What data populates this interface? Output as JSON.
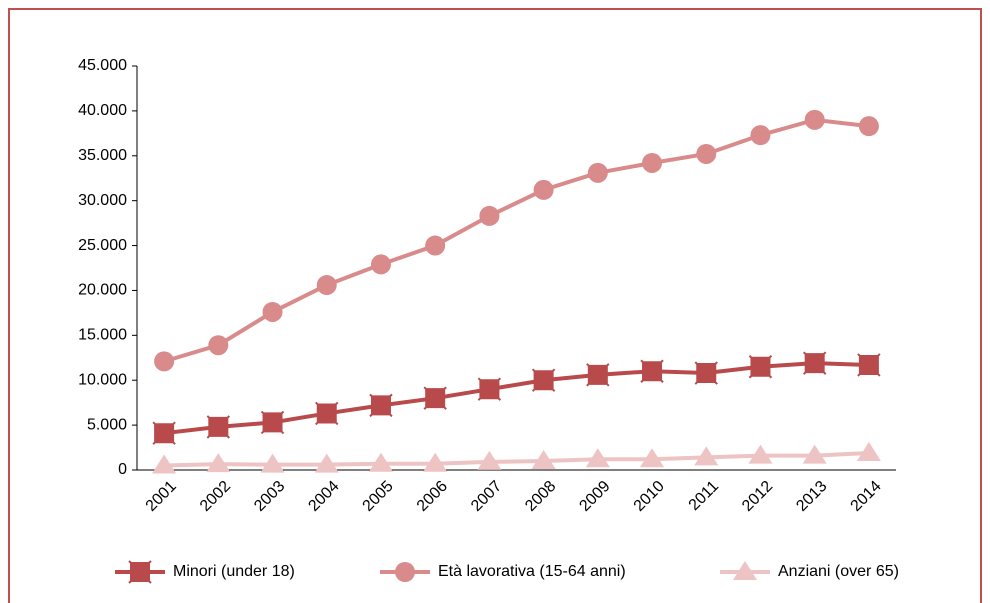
{
  "chart_data": {
    "type": "line",
    "categories": [
      "2001",
      "2002",
      "2003",
      "2004",
      "2005",
      "2006",
      "2007",
      "2008",
      "2009",
      "2010",
      "2011",
      "2012",
      "2013",
      "2014"
    ],
    "series": [
      {
        "name": "Minori (under 18)",
        "color": "#b84a4c",
        "marker": "x-square",
        "values": [
          4100,
          4800,
          5300,
          6300,
          7200,
          8000,
          9000,
          10000,
          10600,
          11000,
          10800,
          11500,
          11900,
          11700
        ]
      },
      {
        "name": "Età lavorativa (15-64 anni)",
        "color": "#d98a8a",
        "marker": "circle",
        "values": [
          12100,
          13900,
          17600,
          20600,
          22900,
          25000,
          28300,
          31200,
          33100,
          34200,
          35200,
          37300,
          39000,
          38300
        ]
      },
      {
        "name": "Anziani (over 65)",
        "color": "#edc3c3",
        "marker": "triangle",
        "values": [
          500,
          650,
          600,
          600,
          700,
          700,
          900,
          1000,
          1200,
          1200,
          1400,
          1600,
          1600,
          1900
        ]
      }
    ],
    "ylim": [
      0,
      45000
    ],
    "yticks": [
      0,
      {
        "value": 5000,
        "label": "5.000"
      },
      {
        "value": 10000,
        "label": "10.000"
      },
      {
        "value": 15000,
        "label": "15.000"
      },
      {
        "value": 20000,
        "label": "20.000"
      },
      {
        "value": 25000,
        "label": "25.000"
      },
      {
        "value": 30000,
        "label": "30.000"
      },
      {
        "value": 35000,
        "label": "35.000"
      },
      {
        "value": 40000,
        "label": "40.000"
      },
      {
        "value": 45000,
        "label": "45.000"
      }
    ],
    "grid": false
  }
}
